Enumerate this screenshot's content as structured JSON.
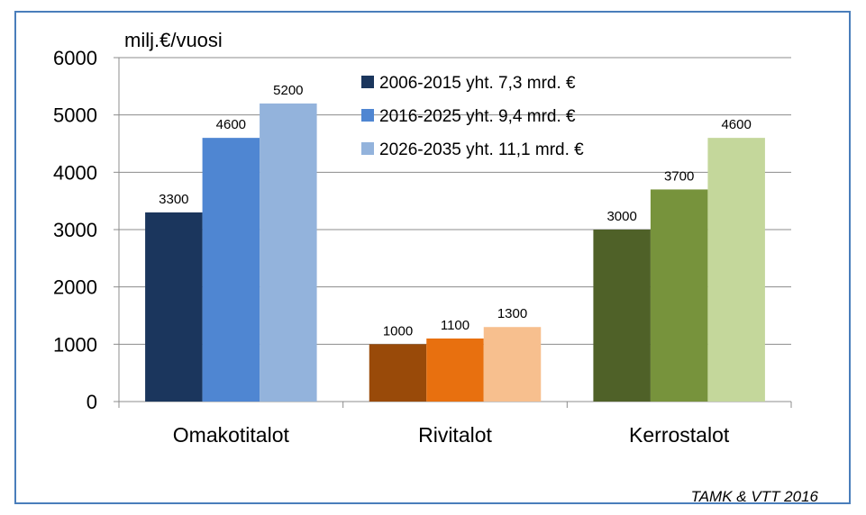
{
  "chart_data": {
    "type": "bar",
    "ylabel": "milj.€/vuosi",
    "ylim": [
      0,
      6000
    ],
    "yticks": [
      0,
      1000,
      2000,
      3000,
      4000,
      5000,
      6000
    ],
    "categories": [
      "Omakotitalot",
      "Rivitalot",
      "Kerrostalot"
    ],
    "series": [
      {
        "name": "2006-2015 yht. 7,3 mrd. €",
        "values": [
          3300,
          1000,
          3000
        ]
      },
      {
        "name": "2016-2025 yht. 9,4 mrd. €",
        "values": [
          4600,
          1100,
          3700
        ]
      },
      {
        "name": "2026-2035 yht. 11,1 mrd. €",
        "values": [
          5200,
          1300,
          4600
        ]
      }
    ],
    "colors": [
      [
        "#1b365d",
        "#4f86d2",
        "#93b3dc"
      ],
      [
        "#994a09",
        "#e8700f",
        "#f7bf8e"
      ],
      [
        "#4f6128",
        "#77933c",
        "#c4d79b"
      ]
    ],
    "legend_colors": [
      "#1b365d",
      "#4f86d2",
      "#93b3dc"
    ],
    "grid": true,
    "legend_position": "top-center"
  },
  "source": "TAMK & VTT 2016"
}
